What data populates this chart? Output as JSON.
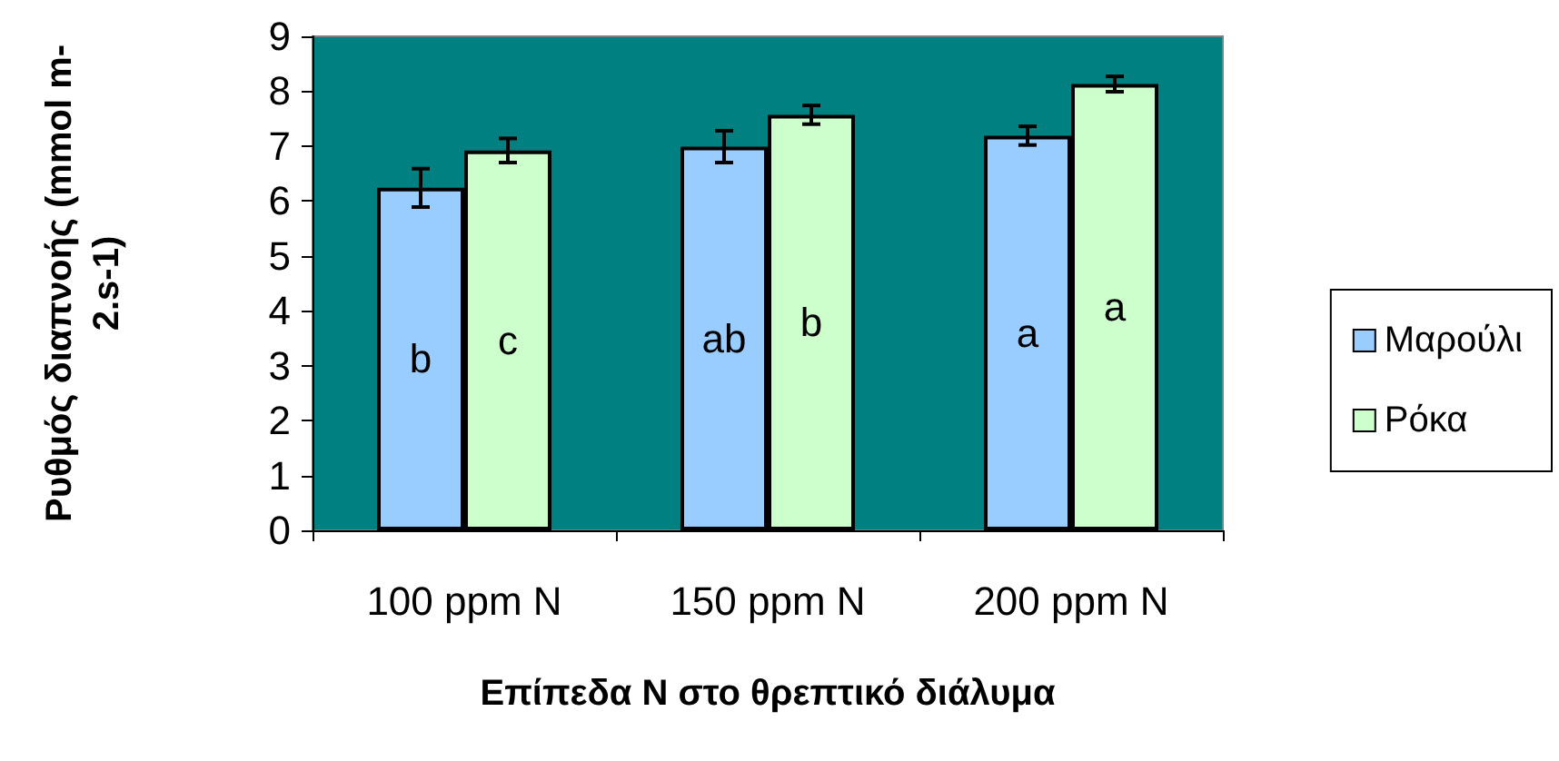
{
  "chart_data": {
    "type": "bar",
    "xlabel": "Επίπεδα N στο θρεπτικό διάλυμα",
    "ylabel": "Ρυθμός διαπνοής (mmol m-\n2.s-1)",
    "categories": [
      "100 ppm N",
      "150 ppm N",
      "200 ppm N"
    ],
    "series": [
      {
        "name": "Μαρούλι",
        "color": "#99ccff",
        "values": [
          6.24,
          6.99,
          7.19
        ],
        "errors": [
          0.35,
          0.29,
          0.17
        ],
        "value_labels": [
          "b",
          "ab",
          "a"
        ]
      },
      {
        "name": "Ρόκα",
        "color": "#ccffcc",
        "values": [
          6.92,
          7.57,
          8.13
        ],
        "errors": [
          0.22,
          0.17,
          0.14
        ],
        "value_labels": [
          "c",
          "b",
          "a"
        ]
      }
    ],
    "ylim": [
      0,
      9
    ],
    "yticks": [
      0,
      1,
      2,
      3,
      4,
      5,
      6,
      7,
      8,
      9
    ],
    "grid": false,
    "legend": "right"
  }
}
